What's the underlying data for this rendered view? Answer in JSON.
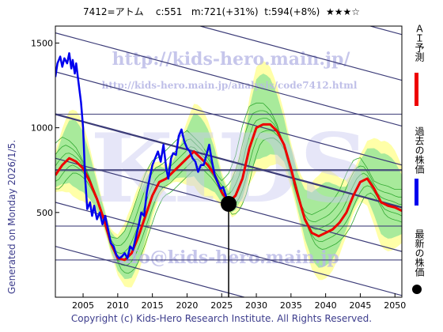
{
  "header": {
    "ticker_name": "7412=アトム",
    "current": "c:551",
    "mid": "m:721(+31%)",
    "target": "t:594(+8%)",
    "stars": "★★★☆"
  },
  "footer": {
    "copyright": "Copyright (c) Kids-Hero Research Institute. All Rights Reserved."
  },
  "side_text": "Generated on Monday 2026/1/5.",
  "watermarks": {
    "url_main": "http://kids-hero.main.jp/",
    "url_analysis": "http://kids-hero.main.jp/analysis/code7412.html",
    "email": "info@kids-hero.main.jp",
    "big_letters": "KIDS"
  },
  "legend": {
    "ai_forecast": "ＡＩ予測",
    "past_price": "過去の株価",
    "latest_price": "最新の株価"
  },
  "colors": {
    "forecast": "#ee0000",
    "past_price": "#0000ee",
    "latest_dot": "#000000",
    "band_fill": "#99e699",
    "band_light": "#ffff99",
    "trend_lines": "#3c3c78",
    "grid": "#3c3c78"
  },
  "chart_data": {
    "type": "line",
    "xlim": [
      2001,
      2051
    ],
    "ylim": [
      0,
      1600
    ],
    "xticks": [
      2005,
      2010,
      2015,
      2020,
      2025,
      2030,
      2035,
      2040,
      2045,
      2050
    ],
    "yticks": [
      500,
      1000,
      1500
    ],
    "latest": {
      "x": 2026.0,
      "y": 551
    },
    "series": [
      {
        "key": "past_price",
        "x": [
          2001,
          2001.3,
          2001.7,
          2002,
          2002.3,
          2002.7,
          2003,
          2003.3,
          2003.5,
          2003.8,
          2004,
          2004.3,
          2004.7,
          2005,
          2005.3,
          2005.6,
          2006,
          2006.3,
          2006.6,
          2007,
          2007.4,
          2007.8,
          2008.2,
          2008.6,
          2009,
          2009.4,
          2009.8,
          2010.2,
          2010.6,
          2011,
          2011.4,
          2011.8,
          2012.2,
          2012.6,
          2013,
          2013.4,
          2013.8,
          2014.2,
          2014.6,
          2015,
          2015.4,
          2015.8,
          2016.2,
          2016.6,
          2017,
          2017.3,
          2017.7,
          2018,
          2018.4,
          2018.8,
          2019.2,
          2019.6,
          2020,
          2020.4,
          2020.8,
          2021.2,
          2021.6,
          2022,
          2022.4,
          2022.8,
          2023.2,
          2023.6,
          2024,
          2024.4,
          2024.8,
          2025.2,
          2025.6,
          2026
        ],
        "y": [
          1300,
          1380,
          1420,
          1360,
          1410,
          1380,
          1440,
          1350,
          1400,
          1320,
          1380,
          1280,
          1150,
          1000,
          700,
          520,
          560,
          480,
          540,
          460,
          500,
          430,
          480,
          400,
          320,
          300,
          250,
          230,
          240,
          260,
          230,
          300,
          280,
          350,
          420,
          500,
          480,
          620,
          700,
          780,
          820,
          860,
          800,
          900,
          760,
          700,
          820,
          850,
          840,
          950,
          990,
          920,
          880,
          860,
          820,
          800,
          740,
          780,
          780,
          840,
          900,
          800,
          720,
          680,
          640,
          650,
          600,
          551
        ]
      },
      {
        "key": "ai_forecast",
        "x": [
          2001,
          2002,
          2003,
          2004,
          2005,
          2006,
          2007,
          2008,
          2009,
          2010,
          2011,
          2012,
          2013,
          2014,
          2015,
          2016,
          2017,
          2018,
          2019,
          2020,
          2021,
          2022,
          2023,
          2024,
          2025,
          2026,
          2027,
          2028,
          2029,
          2030,
          2031,
          2032,
          2033,
          2034,
          2035,
          2036,
          2037,
          2038,
          2039,
          2040,
          2041,
          2042,
          2043,
          2044,
          2045,
          2046,
          2047,
          2048,
          2049,
          2050,
          2051
        ],
        "y": [
          720,
          780,
          820,
          800,
          760,
          680,
          580,
          460,
          320,
          230,
          220,
          260,
          360,
          480,
          600,
          680,
          700,
          740,
          780,
          820,
          860,
          820,
          780,
          720,
          620,
          560,
          600,
          700,
          880,
          1000,
          1020,
          1020,
          980,
          900,
          760,
          600,
          460,
          380,
          360,
          380,
          400,
          440,
          500,
          600,
          680,
          700,
          640,
          560,
          540,
          530,
          510
        ]
      }
    ]
  }
}
